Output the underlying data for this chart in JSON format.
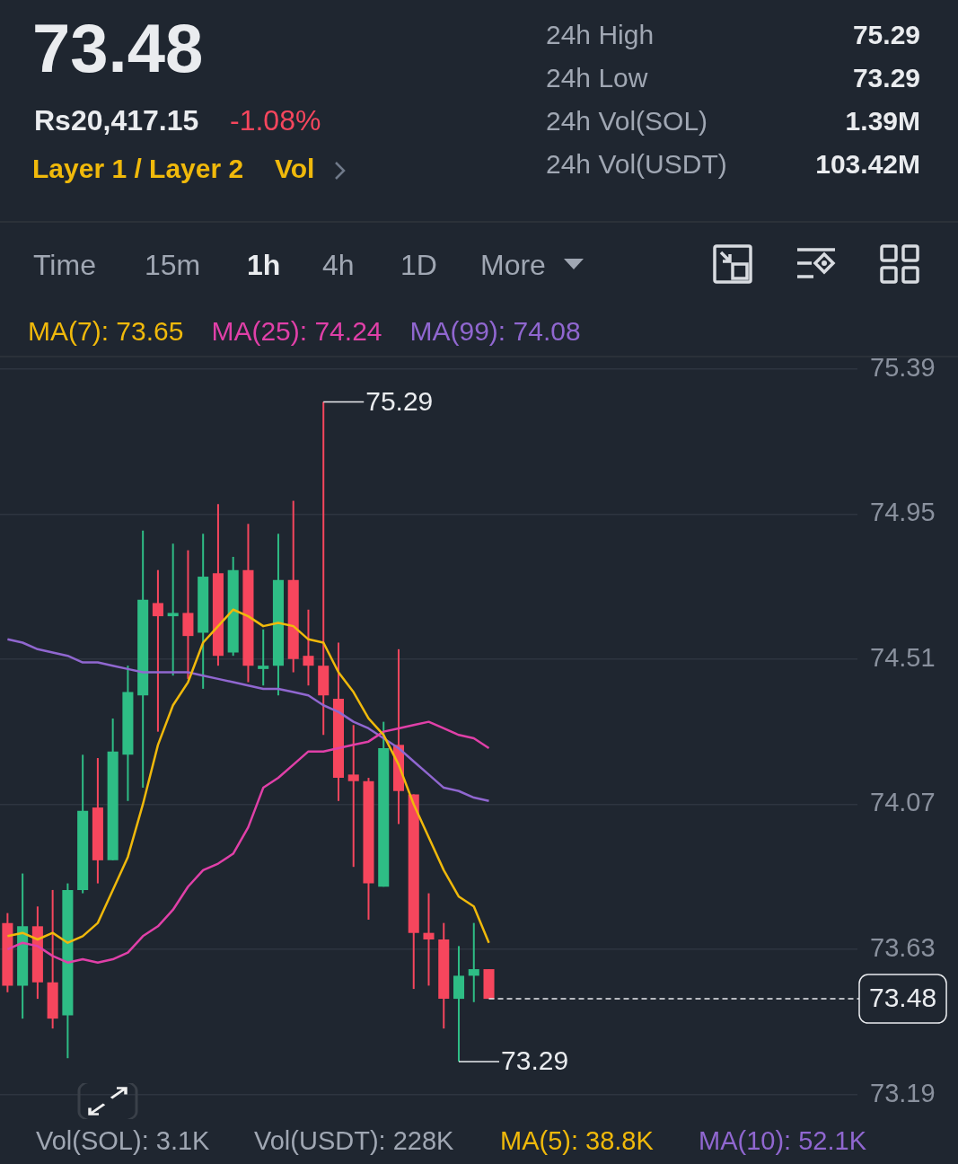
{
  "chart_data": {
    "type": "candlestick",
    "title": "73.48",
    "categories": [
      null,
      null,
      null,
      null,
      null,
      null,
      null,
      null,
      null,
      null,
      null,
      null,
      null,
      null,
      null,
      null,
      null,
      null,
      null,
      null,
      null,
      null,
      null,
      null,
      null,
      null,
      null,
      null,
      null,
      null,
      null,
      null,
      null,
      null,
      null,
      null,
      null,
      null,
      null,
      null,
      null,
      null,
      null,
      null,
      null,
      null,
      null,
      null,
      null,
      null,
      null,
      null,
      null,
      null,
      null,
      null,
      null
    ],
    "ohlc": [
      [
        73.71,
        73.74,
        73.5,
        73.52
      ],
      [
        73.52,
        73.86,
        73.42,
        73.7
      ],
      [
        73.7,
        73.76,
        73.48,
        73.53
      ],
      [
        73.53,
        73.81,
        73.39,
        73.42
      ],
      [
        73.43,
        73.83,
        73.3,
        73.81
      ],
      [
        73.81,
        74.22,
        73.8,
        74.05
      ],
      [
        74.06,
        74.21,
        73.83,
        73.9
      ],
      [
        73.9,
        74.33,
        73.9,
        74.23
      ],
      [
        74.22,
        74.49,
        74.08,
        74.41
      ],
      [
        74.4,
        74.9,
        74.12,
        74.69
      ],
      [
        74.68,
        74.78,
        74.29,
        74.64
      ],
      [
        74.64,
        74.86,
        74.46,
        74.65
      ],
      [
        74.65,
        74.84,
        74.45,
        74.58
      ],
      [
        74.59,
        74.89,
        74.42,
        74.76
      ],
      [
        74.77,
        74.98,
        74.49,
        74.52
      ],
      [
        74.53,
        74.82,
        74.52,
        74.78
      ],
      [
        74.78,
        74.92,
        74.44,
        74.49
      ],
      [
        74.48,
        74.6,
        74.43,
        74.49
      ],
      [
        74.49,
        74.89,
        74.4,
        74.75
      ],
      [
        74.75,
        74.99,
        74.47,
        74.51
      ],
      [
        74.52,
        74.66,
        74.43,
        74.49
      ],
      [
        74.49,
        75.29,
        74.28,
        74.4
      ],
      [
        74.39,
        74.56,
        74.08,
        74.15
      ],
      [
        74.16,
        74.31,
        73.88,
        74.14
      ],
      [
        74.14,
        74.15,
        73.72,
        73.83
      ],
      [
        73.82,
        74.32,
        73.82,
        74.24
      ],
      [
        74.25,
        74.54,
        74.01,
        74.11
      ],
      [
        74.1,
        74.1,
        73.51,
        73.68
      ],
      [
        73.68,
        73.8,
        73.52,
        73.66
      ],
      [
        73.66,
        73.71,
        73.39,
        73.48
      ],
      [
        73.48,
        73.64,
        73.29,
        73.55
      ],
      [
        73.55,
        73.71,
        73.47,
        73.57
      ],
      [
        73.57,
        73.57,
        73.48,
        73.48
      ],
      null,
      null,
      null,
      null,
      null,
      null,
      null,
      null,
      null,
      null,
      null,
      null,
      null,
      null,
      null,
      null,
      null,
      null,
      null,
      null,
      null,
      null,
      null,
      null
    ],
    "colors": [
      "#f6465d",
      "#2ebd85",
      "#f6465d",
      "#f6465d",
      "#2ebd85",
      "#2ebd85",
      "#f6465d",
      "#2ebd85",
      "#2ebd85",
      "#2ebd85",
      "#f6465d",
      "#2ebd85",
      "#f6465d",
      "#2ebd85",
      "#f6465d",
      "#2ebd85",
      "#f6465d",
      "#2ebd85",
      "#2ebd85",
      "#f6465d",
      "#f6465d",
      "#f6465d",
      "#f6465d",
      "#f6465d",
      "#f6465d",
      "#2ebd85",
      "#f6465d",
      "#f6465d",
      "#f6465d",
      "#f6465d",
      "#2ebd85",
      "#2ebd85",
      "#f6465d",
      null,
      null,
      null,
      null,
      null,
      null,
      null,
      null,
      null,
      null,
      null,
      null,
      null,
      null,
      null,
      null,
      null,
      null,
      null,
      null,
      null,
      null,
      null,
      null
    ],
    "series": [
      {
        "type": "line",
        "name": "MA(7): 73.65",
        "color": "#f0b90b",
        "values": [
          73.67,
          73.68,
          73.66,
          73.68,
          73.65,
          73.67,
          73.71,
          73.81,
          73.91,
          74.07,
          74.25,
          74.37,
          74.44,
          74.56,
          74.61,
          74.66,
          74.64,
          74.61,
          74.62,
          74.61,
          74.57,
          74.56,
          74.47,
          74.41,
          74.33,
          74.28,
          74.19,
          74.07,
          73.97,
          73.87,
          73.79,
          73.76,
          73.65,
          null,
          null,
          null,
          null,
          null,
          null,
          null,
          null,
          null,
          null,
          null,
          null,
          null,
          null,
          null,
          null,
          null,
          null,
          null,
          null,
          null,
          null,
          null,
          null
        ]
      },
      {
        "type": "line",
        "name": "MA(25): 74.24",
        "color": "#e040a8",
        "values": [
          73.63,
          73.65,
          73.64,
          73.61,
          73.59,
          73.6,
          73.59,
          73.6,
          73.62,
          73.67,
          73.7,
          73.75,
          73.82,
          73.87,
          73.89,
          73.92,
          74.0,
          74.12,
          74.15,
          74.19,
          74.23,
          74.23,
          74.24,
          74.25,
          74.26,
          74.29,
          74.3,
          74.31,
          74.32,
          74.3,
          74.28,
          74.27,
          74.24,
          null,
          null,
          null,
          null,
          null,
          null,
          null,
          null,
          null,
          null,
          null,
          null,
          null,
          null,
          null,
          null,
          null,
          null,
          null,
          null,
          null,
          null,
          null,
          null
        ]
      },
      {
        "type": "line",
        "name": "MA(99): 74.08",
        "color": "#9067d0",
        "values": [
          74.57,
          74.56,
          74.54,
          74.53,
          74.52,
          74.5,
          74.5,
          74.49,
          74.48,
          74.47,
          74.47,
          74.47,
          74.47,
          74.46,
          74.45,
          74.44,
          74.43,
          74.42,
          74.42,
          74.41,
          74.4,
          74.37,
          74.35,
          74.32,
          74.3,
          74.27,
          74.24,
          74.2,
          74.16,
          74.12,
          74.11,
          74.09,
          74.08,
          null,
          null,
          null,
          null,
          null,
          null,
          null,
          null,
          null,
          null,
          null,
          null,
          null,
          null,
          null,
          null,
          null,
          null,
          null,
          null,
          null,
          null,
          null,
          null
        ]
      }
    ],
    "ylim": [
      73.19,
      75.43
    ],
    "yticks": [
      75.39,
      74.95,
      74.51,
      74.07,
      73.63,
      73.19
    ],
    "grid": "y",
    "legend": "top",
    "tick_labels": "y",
    "ref_lines": [
      {
        "axis": "y",
        "value": 73.48,
        "label": "73.48",
        "line_style": "dashed",
        "color": "#eaecef"
      }
    ],
    "annotations": [
      "Rs20,417.15",
      "-1.08%",
      "Layer 1 / Layer 2",
      "Vol",
      "24h High",
      "75.29",
      "24h Low",
      "73.29",
      "24h Vol(SOL)",
      "1.39M",
      "24h Vol(USDT)",
      "103.42M",
      "Time",
      "15m",
      "1h",
      "4h",
      "1D",
      "More",
      "Vol(SOL): 3.1K",
      "Vol(USDT): 228K",
      "MA(5): 38.8K",
      "MA(10): 52.1K",
      "75.29",
      "73.29"
    ]
  }
}
